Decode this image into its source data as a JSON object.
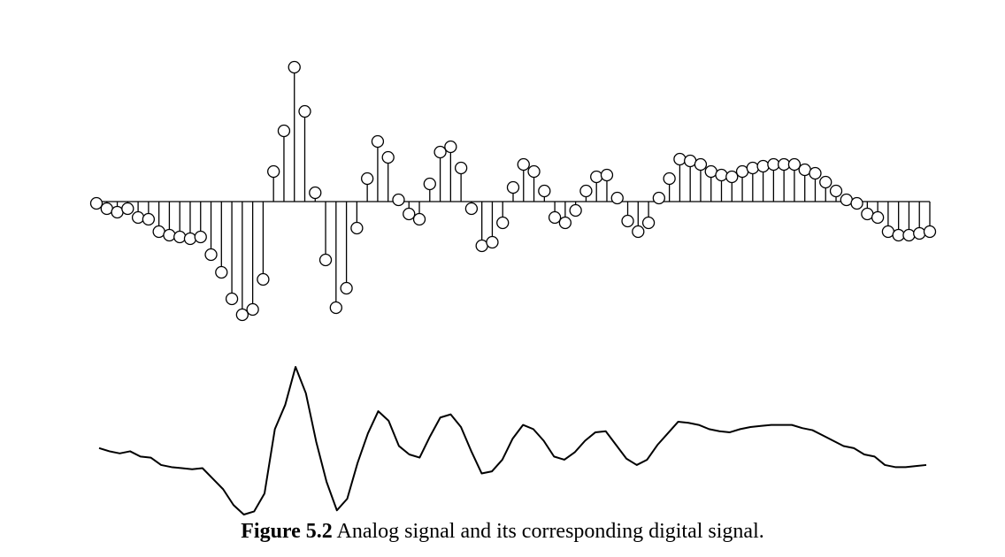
{
  "caption": {
    "label": "Figure 5.2",
    "text": "Analog signal and its corresponding digital signal."
  },
  "colors": {
    "ink": "#000000",
    "background": "#ffffff"
  },
  "chart_data": [
    {
      "type": "stem",
      "title": "",
      "xlabel": "",
      "ylabel": "",
      "axes_visible": false,
      "grid": false,
      "baseline": 0,
      "marker": "open-circle",
      "x_range": [
        0,
        79
      ],
      "ylim": [
        -3.2,
        3.8
      ],
      "values": [
        -0.05,
        -0.2,
        -0.3,
        -0.2,
        -0.45,
        -0.5,
        -0.85,
        -0.95,
        -1.0,
        -1.05,
        -1.0,
        -1.5,
        -2.0,
        -2.75,
        -3.2,
        -3.05,
        -2.2,
        0.85,
        2.0,
        3.8,
        2.55,
        0.25,
        -1.65,
        -3.0,
        -2.45,
        -0.75,
        0.65,
        1.7,
        1.25,
        0.05,
        -0.35,
        -0.5,
        0.5,
        1.4,
        1.55,
        0.95,
        -0.2,
        -1.25,
        -1.15,
        -0.6,
        0.4,
        1.05,
        0.85,
        0.3,
        -0.45,
        -0.6,
        -0.25,
        0.3,
        0.7,
        0.75,
        0.1,
        -0.55,
        -0.85,
        -0.6,
        0.1,
        0.65,
        1.2,
        1.15,
        1.05,
        0.85,
        0.75,
        0.7,
        0.85,
        0.95,
        1.0,
        1.05,
        1.05,
        1.05,
        0.9,
        0.8,
        0.55,
        0.3,
        0.05,
        -0.05,
        -0.35,
        -0.45,
        -0.85,
        -0.95,
        -0.95,
        -0.9,
        -0.85
      ]
    },
    {
      "type": "line",
      "title": "",
      "xlabel": "",
      "ylabel": "",
      "axes_visible": false,
      "grid": false,
      "x_range": [
        0,
        79
      ],
      "ylim": [
        -3.2,
        3.8
      ],
      "values": [
        -0.05,
        -0.2,
        -0.3,
        -0.2,
        -0.45,
        -0.5,
        -0.85,
        -0.95,
        -1.0,
        -1.05,
        -1.0,
        -1.5,
        -2.0,
        -2.75,
        -3.2,
        -3.05,
        -2.2,
        0.85,
        2.0,
        3.8,
        2.55,
        0.25,
        -1.65,
        -3.0,
        -2.45,
        -0.75,
        0.65,
        1.7,
        1.25,
        0.05,
        -0.35,
        -0.5,
        0.5,
        1.4,
        1.55,
        0.95,
        -0.2,
        -1.25,
        -1.15,
        -0.6,
        0.4,
        1.05,
        0.85,
        0.3,
        -0.45,
        -0.6,
        -0.25,
        0.3,
        0.7,
        0.75,
        0.1,
        -0.55,
        -0.85,
        -0.6,
        0.1,
        0.65,
        1.2,
        1.15,
        1.05,
        0.85,
        0.75,
        0.7,
        0.85,
        0.95,
        1.0,
        1.05,
        1.05,
        1.05,
        0.9,
        0.8,
        0.55,
        0.3,
        0.05,
        -0.05,
        -0.35,
        -0.45,
        -0.85,
        -0.95,
        -0.95,
        -0.9,
        -0.85
      ]
    }
  ]
}
